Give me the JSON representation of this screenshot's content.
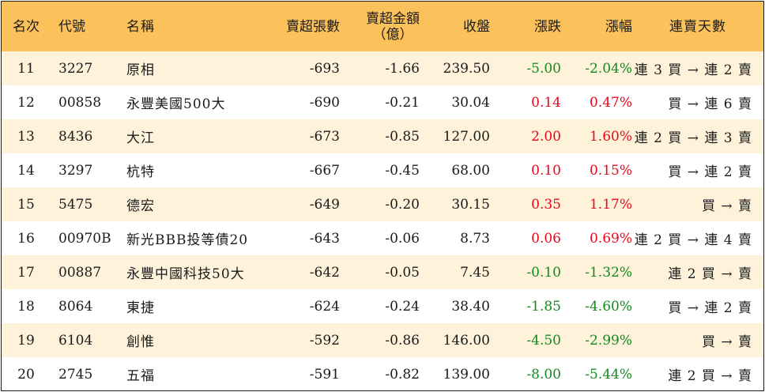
{
  "headers": {
    "rank": "名次",
    "code": "代號",
    "name": "名稱",
    "net_sell_volume": "賣超張數",
    "net_sell_amount_line1": "賣超金額",
    "net_sell_amount_line2": "（億）",
    "close": "收盤",
    "change": "漲跌",
    "change_pct": "漲幅",
    "consecutive_days": "連賣天數"
  },
  "rows": [
    {
      "rank": "11",
      "code": "3227",
      "name": "原相",
      "volume": "-693",
      "amount": "-1.66",
      "close": "239.50",
      "change": "-5.00",
      "pct": "-2.04%",
      "days": "連 3 買 → 連 2 賣",
      "dir": "neg"
    },
    {
      "rank": "12",
      "code": "00858",
      "name": "永豐美國500大",
      "volume": "-690",
      "amount": "-0.21",
      "close": "30.04",
      "change": "0.14",
      "pct": "0.47%",
      "days": "買 → 連 6 賣",
      "dir": "pos"
    },
    {
      "rank": "13",
      "code": "8436",
      "name": "大江",
      "volume": "-673",
      "amount": "-0.85",
      "close": "127.00",
      "change": "2.00",
      "pct": "1.60%",
      "days": "連 2 買 → 連 3 賣",
      "dir": "pos"
    },
    {
      "rank": "14",
      "code": "3297",
      "name": "杭特",
      "volume": "-667",
      "amount": "-0.45",
      "close": "68.00",
      "change": "0.10",
      "pct": "0.15%",
      "days": "買 → 連 2 賣",
      "dir": "pos"
    },
    {
      "rank": "15",
      "code": "5475",
      "name": "德宏",
      "volume": "-649",
      "amount": "-0.20",
      "close": "30.15",
      "change": "0.35",
      "pct": "1.17%",
      "days": "買 → 賣",
      "dir": "pos"
    },
    {
      "rank": "16",
      "code": "00970B",
      "name": "新光BBB投等債20",
      "volume": "-643",
      "amount": "-0.06",
      "close": "8.73",
      "change": "0.06",
      "pct": "0.69%",
      "days": "連 2 買 → 連 4 賣",
      "dir": "pos"
    },
    {
      "rank": "17",
      "code": "00887",
      "name": "永豐中國科技50大",
      "volume": "-642",
      "amount": "-0.05",
      "close": "7.45",
      "change": "-0.10",
      "pct": "-1.32%",
      "days": "連 2 買 → 賣",
      "dir": "neg"
    },
    {
      "rank": "18",
      "code": "8064",
      "name": "東捷",
      "volume": "-624",
      "amount": "-0.24",
      "close": "38.40",
      "change": "-1.85",
      "pct": "-4.60%",
      "days": "買 → 連 2 賣",
      "dir": "neg"
    },
    {
      "rank": "19",
      "code": "6104",
      "name": "創惟",
      "volume": "-592",
      "amount": "-0.86",
      "close": "146.00",
      "change": "-4.50",
      "pct": "-2.99%",
      "days": "買 → 賣",
      "dir": "neg"
    },
    {
      "rank": "20",
      "code": "2745",
      "name": "五福",
      "volume": "-591",
      "amount": "-0.82",
      "close": "139.00",
      "change": "-8.00",
      "pct": "-5.44%",
      "days": "連 2 買 → 賣",
      "dir": "neg"
    }
  ],
  "colors": {
    "header_bg": "#fbc25c",
    "stripe_bg": "#fef3da",
    "up": "#e8071a",
    "down": "#138a1e"
  }
}
